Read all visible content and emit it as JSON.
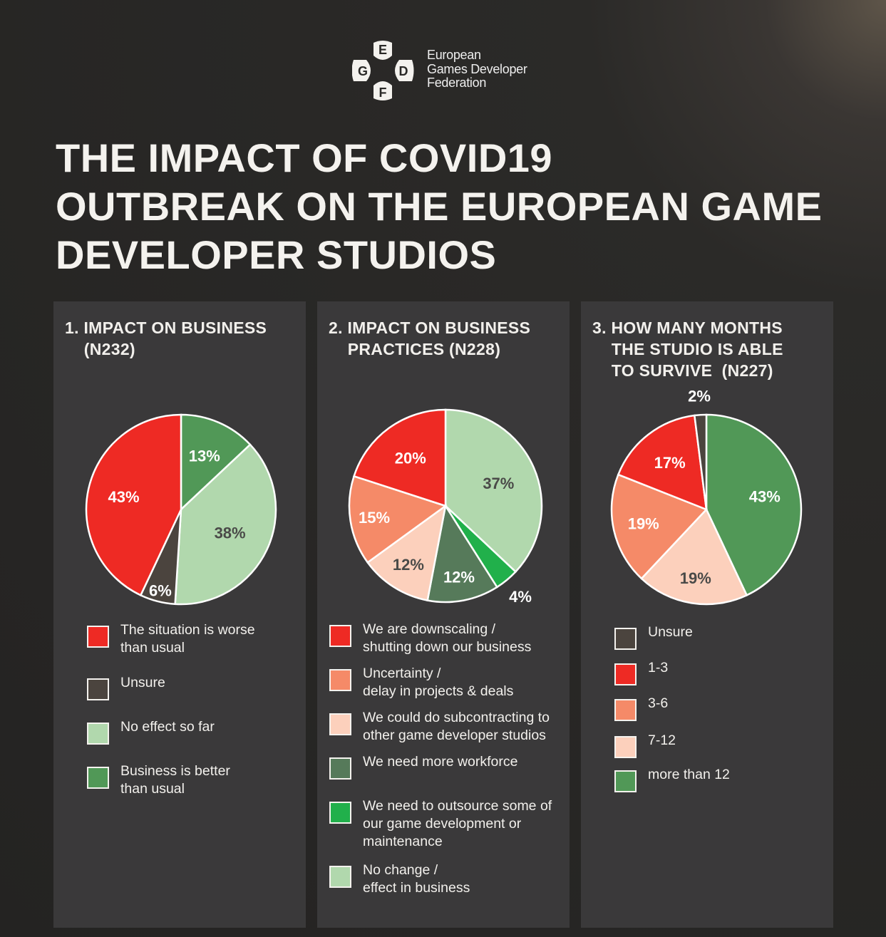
{
  "logo": {
    "letters": [
      "E",
      "G",
      "D",
      "F"
    ],
    "text": [
      "European",
      "Games Developer",
      "Federation"
    ]
  },
  "title": [
    "THE IMPACT OF COVID19",
    "OUTBREAK ON THE EUROPEAN GAME",
    "DEVELOPER STUDIOS"
  ],
  "colors": {
    "worse": "#ee2a24",
    "unsure": "#4b443e",
    "noeffect": "#b1d8ad",
    "better": "#519857",
    "salmon": "#f58a68",
    "pale": "#fcd0bc",
    "darkgreen": "#567a5a",
    "brightgreen": "#21b04b",
    "dark_label": "#4a4a48",
    "white_label": "#ffffff"
  },
  "chart_data": [
    {
      "type": "pie",
      "title": "1. IMPACT ON BUSINESS\n    (N232)",
      "slices": [
        {
          "label": "Business is better\nthan usual",
          "value": 13,
          "color": "#519857",
          "text": "13%",
          "dark": false
        },
        {
          "label": "No effect so far",
          "value": 38,
          "color": "#b1d8ad",
          "text": "38%",
          "dark": true
        },
        {
          "label": "Unsure",
          "value": 6,
          "color": "#4b443e",
          "text": "6%",
          "dark": false
        },
        {
          "label": "The situation is worse\nthan usual",
          "value": 43,
          "color": "#ee2a24",
          "text": "43%",
          "dark": false
        }
      ],
      "legend_order": [
        3,
        2,
        1,
        0
      ]
    },
    {
      "type": "pie",
      "title": "2. IMPACT ON BUSINESS\n    PRACTICES (N228)",
      "slices": [
        {
          "label": "No change /\neffect in business",
          "value": 37,
          "color": "#b1d8ad",
          "text": "37%",
          "dark": true
        },
        {
          "label": "We need to outsource some of\nour game development or\nmaintenance",
          "value": 4,
          "color": "#21b04b",
          "text": "4%",
          "dark": false
        },
        {
          "label": "We need more workforce",
          "value": 12,
          "color": "#567a5a",
          "text": "12%",
          "dark": false
        },
        {
          "label": "We could do subcontracting to\nother game developer studios",
          "value": 12,
          "color": "#fcd0bc",
          "text": "12%",
          "dark": true
        },
        {
          "label": "Uncertainty /\ndelay in projects & deals",
          "value": 15,
          "color": "#f58a68",
          "text": "15%",
          "dark": false
        },
        {
          "label": "We are downscaling /\nshutting down our business",
          "value": 20,
          "color": "#ee2a24",
          "text": "20%",
          "dark": false
        }
      ],
      "legend_order": [
        5,
        4,
        3,
        2,
        1,
        0
      ]
    },
    {
      "type": "pie",
      "title": "3. HOW MANY MONTHS\n    THE STUDIO IS ABLE\n    TO SURVIVE  (N227)",
      "slices": [
        {
          "label": "more than 12",
          "value": 43,
          "color": "#519857",
          "text": "43%",
          "dark": false
        },
        {
          "label": "7-12",
          "value": 19,
          "color": "#fcd0bc",
          "text": "19%",
          "dark": true
        },
        {
          "label": "3-6",
          "value": 19,
          "color": "#f58a68",
          "text": "19%",
          "dark": false
        },
        {
          "label": "1-3",
          "value": 17,
          "color": "#ee2a24",
          "text": "17%",
          "dark": false
        },
        {
          "label": "Unsure",
          "value": 2,
          "color": "#4b443e",
          "text": "2%",
          "dark": false
        }
      ],
      "legend_order": [
        4,
        3,
        2,
        1,
        0
      ]
    }
  ]
}
